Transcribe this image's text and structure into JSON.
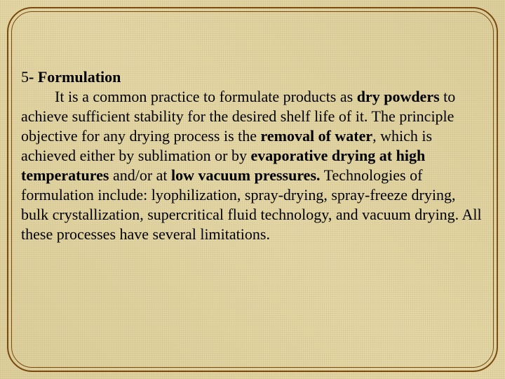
{
  "slide": {
    "background_color": "#e5d8a8",
    "border_color": "#7b4a0f",
    "text_color": "#000000",
    "font_family": "Times New Roman",
    "font_size_pt": 17,
    "heading": {
      "number": "5",
      "dash": "- ",
      "title": "Formulation"
    },
    "body": {
      "t01": "It is a common practice to formulate products as ",
      "b01": "dry powders",
      "t02": " to achieve sufficient stability for the desired shelf life of it. The principle objective for any drying process is the ",
      "b02": "removal of water",
      "t03": ", which is achieved either by sublimation or by ",
      "b03": "evaporative drying at high temperatures ",
      "t04": "and/or at ",
      "b04": "low vacuum pressures.",
      "t05": " Technologies of formulation include: lyophilization, spray-drying, spray-freeze drying, bulk crystallization, supercritical fluid technology, and vacuum drying. All these processes have several limitations."
    }
  }
}
